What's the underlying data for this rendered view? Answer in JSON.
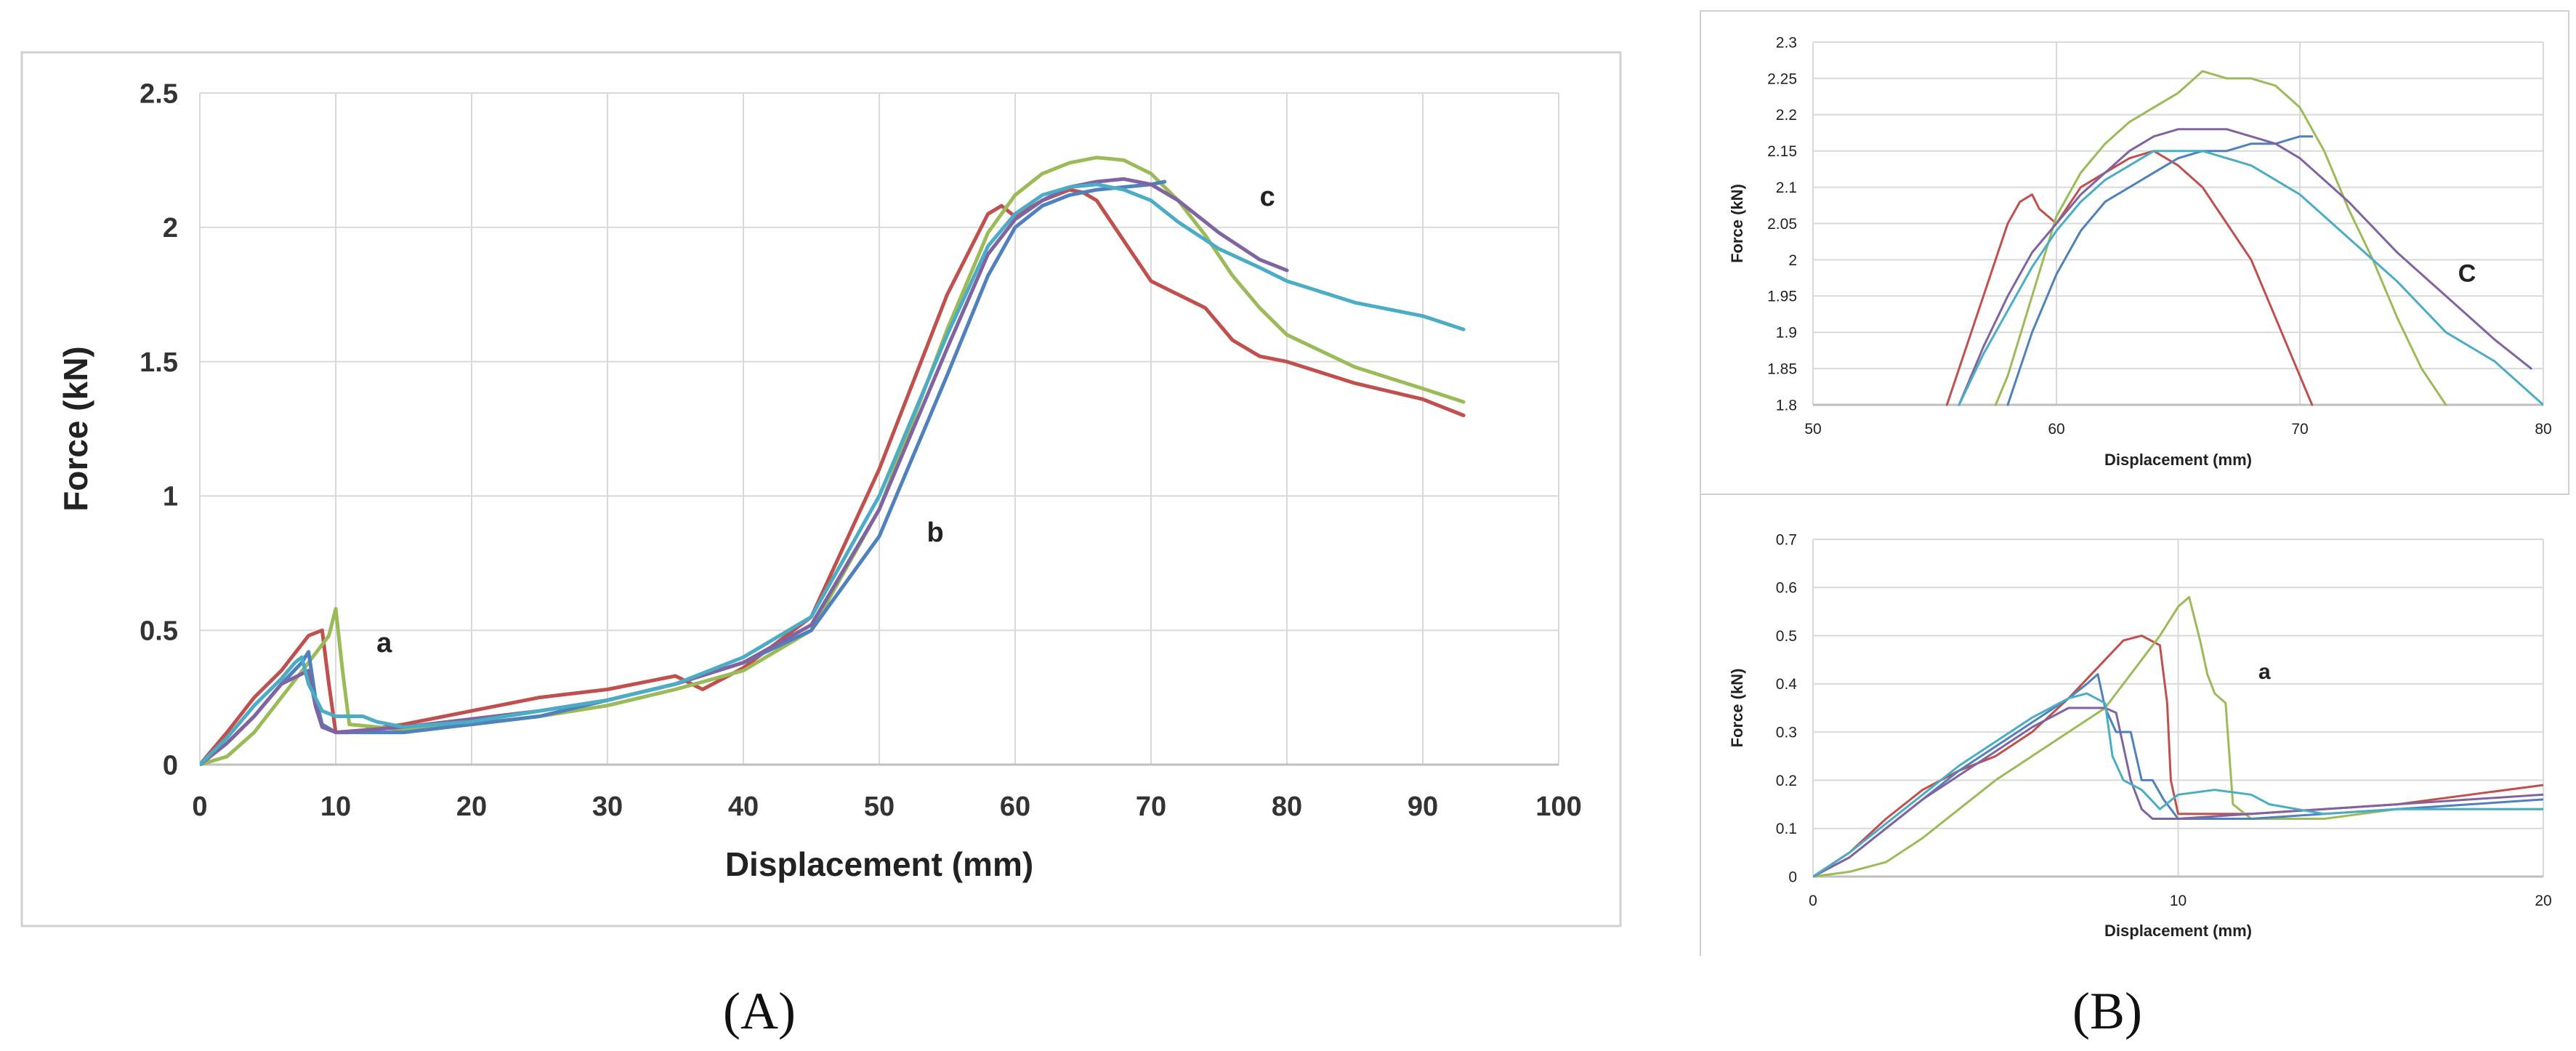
{
  "colors": {
    "red": "#c0504d",
    "green": "#9bbb59",
    "blue": "#4f81bd",
    "purple": "#8064a2",
    "cyan": "#4bacc6",
    "grid": "#d9d9d9",
    "frame": "#d0d0d0"
  },
  "panel_labels": {
    "a": "(A)",
    "b": "(B)"
  },
  "chart_data": [
    {
      "id": "A",
      "type": "line",
      "xlabel": "Displacement (mm)",
      "ylabel": "Force (kN)",
      "xlim": [
        0,
        100
      ],
      "ylim": [
        0,
        2.5
      ],
      "xticks": [
        0,
        10,
        20,
        30,
        40,
        50,
        60,
        70,
        80,
        90,
        100
      ],
      "xtick_labels": [
        "0",
        "10",
        "20",
        "30",
        "40",
        "50",
        "60",
        "70",
        "80",
        "90",
        "100"
      ],
      "yticks": [
        0,
        0.5,
        1,
        1.5,
        2,
        2.5
      ],
      "ytick_labels": [
        "0",
        "0.5",
        "1",
        "1.5",
        "2",
        "2.5"
      ],
      "grid": true,
      "annotations": [
        {
          "text": "a",
          "x": 13,
          "y": 0.42
        },
        {
          "text": "b",
          "x": 53.5,
          "y": 0.83
        },
        {
          "text": "c",
          "x": 78,
          "y": 2.08
        }
      ],
      "series": [
        {
          "color": "red",
          "x": [
            0,
            2,
            4,
            6,
            8,
            9,
            9.5,
            10,
            11,
            15,
            20,
            25,
            30,
            35,
            37,
            40,
            45,
            50,
            55,
            58,
            59,
            60,
            62,
            64,
            65,
            66,
            68,
            70,
            72,
            74,
            76,
            78,
            80,
            85,
            90,
            93
          ],
          "y": [
            0,
            0.12,
            0.25,
            0.35,
            0.48,
            0.5,
            0.3,
            0.12,
            0.12,
            0.15,
            0.2,
            0.25,
            0.28,
            0.33,
            0.28,
            0.36,
            0.55,
            1.1,
            1.75,
            2.05,
            2.08,
            2.04,
            2.1,
            2.14,
            2.13,
            2.1,
            1.95,
            1.8,
            1.75,
            1.7,
            1.58,
            1.52,
            1.5,
            1.42,
            1.36,
            1.3
          ]
        },
        {
          "color": "green",
          "x": [
            0,
            2,
            4,
            6,
            8,
            9.5,
            10,
            10.5,
            11,
            15,
            20,
            25,
            30,
            35,
            40,
            45,
            50,
            55,
            58,
            60,
            62,
            64,
            66,
            68,
            70,
            72,
            74,
            76,
            78,
            80,
            85,
            90,
            93
          ],
          "y": [
            0,
            0.03,
            0.12,
            0.25,
            0.38,
            0.48,
            0.58,
            0.35,
            0.15,
            0.13,
            0.15,
            0.18,
            0.22,
            0.28,
            0.35,
            0.5,
            0.95,
            1.62,
            1.98,
            2.12,
            2.2,
            2.24,
            2.26,
            2.25,
            2.2,
            2.1,
            1.97,
            1.82,
            1.7,
            1.6,
            1.48,
            1.4,
            1.35
          ]
        },
        {
          "color": "blue",
          "x": [
            0,
            2,
            4,
            6,
            7.5,
            8,
            8.5,
            9,
            10,
            15,
            20,
            25,
            30,
            35,
            40,
            45,
            50,
            55,
            58,
            60,
            62,
            64,
            66,
            68,
            70,
            71
          ],
          "y": [
            0,
            0.08,
            0.18,
            0.3,
            0.38,
            0.42,
            0.25,
            0.15,
            0.12,
            0.12,
            0.15,
            0.18,
            0.24,
            0.3,
            0.38,
            0.5,
            0.85,
            1.45,
            1.82,
            2.0,
            2.08,
            2.12,
            2.14,
            2.15,
            2.16,
            2.17
          ]
        },
        {
          "color": "purple",
          "x": [
            0,
            2,
            4,
            6,
            8,
            8.5,
            9,
            10,
            15,
            20,
            25,
            30,
            35,
            40,
            45,
            50,
            55,
            58,
            60,
            62,
            64,
            66,
            68,
            70,
            72,
            75,
            78,
            80
          ],
          "y": [
            0,
            0.08,
            0.18,
            0.3,
            0.35,
            0.22,
            0.14,
            0.12,
            0.14,
            0.17,
            0.2,
            0.24,
            0.3,
            0.38,
            0.52,
            0.95,
            1.55,
            1.9,
            2.03,
            2.1,
            2.15,
            2.17,
            2.18,
            2.16,
            2.1,
            1.98,
            1.88,
            1.84
          ]
        },
        {
          "color": "cyan",
          "x": [
            0,
            2,
            4,
            6,
            7,
            7.5,
            8,
            9,
            10,
            12,
            13,
            15,
            20,
            25,
            30,
            35,
            40,
            45,
            50,
            55,
            58,
            60,
            62,
            64,
            66,
            68,
            70,
            72,
            75,
            78,
            80,
            85,
            90,
            93
          ],
          "y": [
            0,
            0.1,
            0.22,
            0.32,
            0.38,
            0.4,
            0.3,
            0.2,
            0.18,
            0.18,
            0.16,
            0.14,
            0.16,
            0.2,
            0.24,
            0.3,
            0.4,
            0.55,
            1.0,
            1.6,
            1.93,
            2.05,
            2.12,
            2.15,
            2.16,
            2.14,
            2.1,
            2.02,
            1.92,
            1.85,
            1.8,
            1.72,
            1.67,
            1.62
          ]
        }
      ]
    },
    {
      "id": "B-top",
      "type": "line",
      "xlabel": "Displacement (mm)",
      "ylabel": "Force (kN)",
      "xlim": [
        50,
        80
      ],
      "ylim": [
        1.8,
        2.3
      ],
      "xticks": [
        50,
        60,
        70,
        80
      ],
      "xtick_labels": [
        "50",
        "60",
        "70",
        "80"
      ],
      "yticks": [
        1.8,
        1.85,
        1.9,
        1.95,
        2,
        2.05,
        2.1,
        2.15,
        2.2,
        2.25,
        2.3
      ],
      "ytick_labels": [
        "1.8",
        "1.85",
        "1.9",
        "1.95",
        "2",
        "2.05",
        "2.1",
        "2.15",
        "2.2",
        "2.25",
        "2.3"
      ],
      "grid": true,
      "annotations": [
        {
          "text": "C",
          "x": 76.5,
          "y": 1.97
        }
      ],
      "series": [
        {
          "color": "red",
          "x": [
            55.5,
            57,
            58,
            58.5,
            59,
            59.3,
            60,
            61,
            62,
            63,
            64,
            65,
            66,
            67,
            68,
            69,
            70,
            70.5
          ],
          "y": [
            1.8,
            1.95,
            2.05,
            2.08,
            2.09,
            2.07,
            2.05,
            2.1,
            2.12,
            2.14,
            2.15,
            2.13,
            2.1,
            2.05,
            2.0,
            1.92,
            1.84,
            1.8
          ]
        },
        {
          "color": "green",
          "x": [
            57.5,
            58,
            59,
            60,
            61,
            62,
            63,
            64,
            65,
            66,
            67,
            68,
            69,
            70,
            71,
            72,
            73,
            74,
            75,
            76
          ],
          "y": [
            1.8,
            1.84,
            1.95,
            2.06,
            2.12,
            2.16,
            2.19,
            2.21,
            2.23,
            2.26,
            2.25,
            2.25,
            2.24,
            2.21,
            2.15,
            2.07,
            2.0,
            1.92,
            1.85,
            1.8
          ]
        },
        {
          "color": "blue",
          "x": [
            58,
            59,
            60,
            61,
            62,
            63,
            64,
            65,
            66,
            67,
            68,
            69,
            70,
            70.5
          ],
          "y": [
            1.8,
            1.9,
            1.98,
            2.04,
            2.08,
            2.1,
            2.12,
            2.14,
            2.15,
            2.15,
            2.16,
            2.16,
            2.17,
            2.17
          ]
        },
        {
          "color": "purple",
          "x": [
            56,
            57,
            58,
            59,
            60,
            61,
            62,
            63,
            64,
            65,
            66,
            67,
            68,
            69,
            70,
            71,
            72,
            74,
            76,
            78,
            79.5
          ],
          "y": [
            1.8,
            1.88,
            1.95,
            2.01,
            2.05,
            2.09,
            2.12,
            2.15,
            2.17,
            2.18,
            2.18,
            2.18,
            2.17,
            2.16,
            2.14,
            2.11,
            2.08,
            2.01,
            1.95,
            1.89,
            1.85
          ]
        },
        {
          "color": "cyan",
          "x": [
            56,
            57,
            58,
            59,
            60,
            61,
            62,
            63,
            64,
            65,
            66,
            67,
            68,
            69,
            70,
            71,
            72,
            74,
            76,
            78,
            80
          ],
          "y": [
            1.8,
            1.87,
            1.93,
            1.99,
            2.04,
            2.08,
            2.11,
            2.13,
            2.15,
            2.15,
            2.15,
            2.14,
            2.13,
            2.11,
            2.09,
            2.06,
            2.03,
            1.97,
            1.9,
            1.86,
            1.8
          ]
        }
      ]
    },
    {
      "id": "B-bottom",
      "type": "line",
      "xlabel": "Displacement (mm)",
      "ylabel": "Force (kN)",
      "xlim": [
        0,
        20
      ],
      "ylim": [
        0,
        0.7
      ],
      "xticks": [
        0,
        10,
        20
      ],
      "xtick_labels": [
        "0",
        "10",
        "20"
      ],
      "yticks": [
        0,
        0.1,
        0.2,
        0.3,
        0.4,
        0.5,
        0.6,
        0.7
      ],
      "ytick_labels": [
        "0",
        "0.1",
        "0.2",
        "0.3",
        "0.4",
        "0.5",
        "0.6",
        "0.7"
      ],
      "grid": true,
      "annotations": [
        {
          "text": "a",
          "x": 12.2,
          "y": 0.41
        }
      ],
      "series": [
        {
          "color": "red",
          "x": [
            0,
            1,
            2,
            3,
            4,
            5,
            6,
            7,
            8,
            8.5,
            9,
            9.5,
            9.7,
            9.8,
            10,
            12,
            14,
            16,
            18,
            20
          ],
          "y": [
            0,
            0.05,
            0.12,
            0.18,
            0.22,
            0.25,
            0.3,
            0.37,
            0.45,
            0.49,
            0.5,
            0.48,
            0.36,
            0.2,
            0.13,
            0.13,
            0.14,
            0.15,
            0.17,
            0.19
          ]
        },
        {
          "color": "green",
          "x": [
            0,
            1,
            2,
            3,
            4,
            5,
            6,
            7,
            8,
            9,
            9.5,
            10,
            10.3,
            10.6,
            10.8,
            11,
            11.3,
            11.5,
            12,
            14,
            16,
            18,
            20
          ],
          "y": [
            0,
            0.01,
            0.03,
            0.08,
            0.14,
            0.2,
            0.25,
            0.3,
            0.35,
            0.45,
            0.5,
            0.56,
            0.58,
            0.49,
            0.42,
            0.38,
            0.36,
            0.15,
            0.12,
            0.12,
            0.14,
            0.14,
            0.14
          ]
        },
        {
          "color": "blue",
          "x": [
            0,
            1,
            2,
            3,
            4,
            5,
            6,
            7,
            7.5,
            7.8,
            8,
            8.3,
            8.7,
            9,
            9.3,
            9.6,
            10,
            12,
            14,
            16,
            18,
            20
          ],
          "y": [
            0,
            0.04,
            0.1,
            0.16,
            0.22,
            0.27,
            0.32,
            0.37,
            0.4,
            0.42,
            0.35,
            0.3,
            0.3,
            0.2,
            0.2,
            0.16,
            0.12,
            0.12,
            0.13,
            0.14,
            0.15,
            0.16
          ]
        },
        {
          "color": "purple",
          "x": [
            0,
            1,
            2,
            3,
            4,
            5,
            6,
            7,
            8,
            8.3,
            8.7,
            9,
            9.3,
            10,
            12,
            14,
            16,
            18,
            20
          ],
          "y": [
            0,
            0.04,
            0.1,
            0.16,
            0.21,
            0.26,
            0.31,
            0.35,
            0.35,
            0.34,
            0.2,
            0.14,
            0.12,
            0.12,
            0.13,
            0.14,
            0.15,
            0.16,
            0.17
          ]
        },
        {
          "color": "cyan",
          "x": [
            0,
            1,
            2,
            3,
            4,
            5,
            6,
            7,
            7.5,
            8,
            8.2,
            8.5,
            9,
            9.5,
            10,
            11,
            12,
            12.5,
            14,
            16,
            18,
            20
          ],
          "y": [
            0,
            0.05,
            0.11,
            0.17,
            0.23,
            0.28,
            0.33,
            0.37,
            0.38,
            0.36,
            0.25,
            0.2,
            0.18,
            0.14,
            0.17,
            0.18,
            0.17,
            0.15,
            0.13,
            0.14,
            0.14,
            0.14
          ]
        }
      ]
    }
  ]
}
